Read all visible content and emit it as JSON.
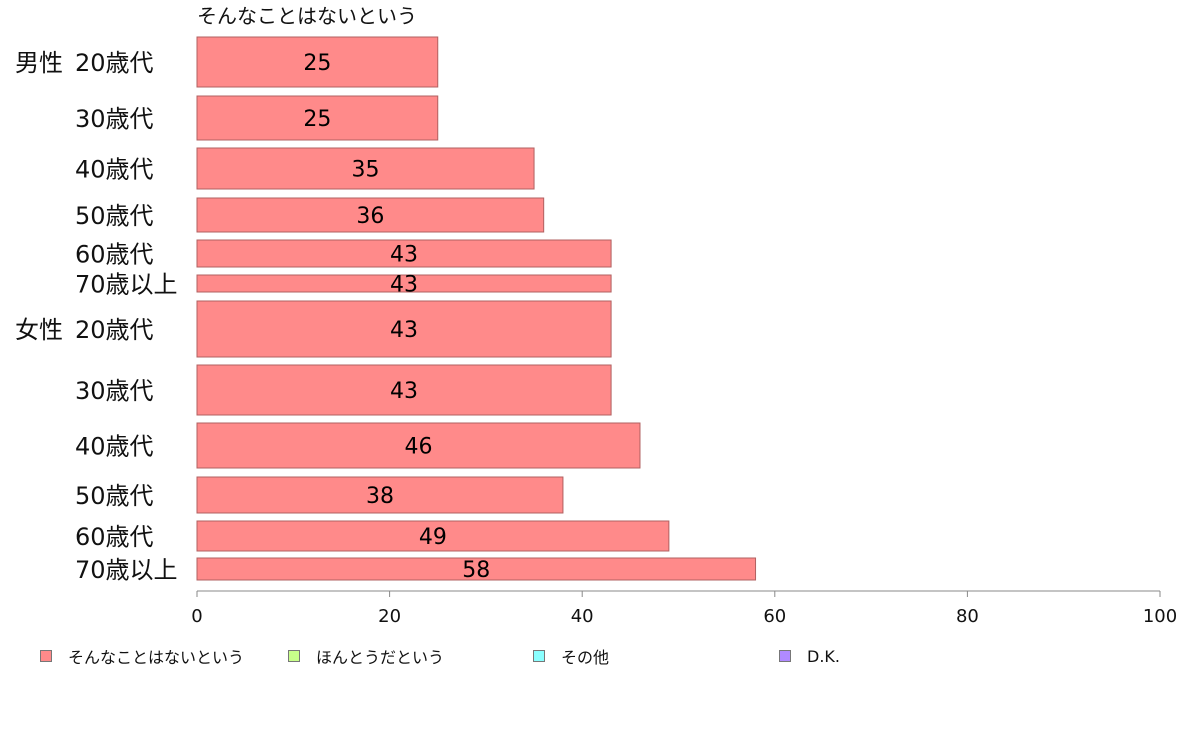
{
  "chart_data": {
    "type": "bar",
    "orientation": "horizontal",
    "series_label": "そんなことはないという",
    "groups": [
      {
        "label": "男性",
        "categories": [
          "20歳代",
          "30歳代",
          "40歳代",
          "50歳代",
          "60歳代",
          "70歳以上"
        ],
        "values": [
          25,
          25,
          35,
          36,
          43,
          43
        ]
      },
      {
        "label": "女性",
        "categories": [
          "20歳代",
          "30歳代",
          "40歳代",
          "50歳代",
          "60歳代",
          "70歳以上"
        ],
        "values": [
          43,
          43,
          46,
          38,
          49,
          58
        ]
      }
    ],
    "xlim": [
      0,
      100
    ],
    "xticks": [
      0,
      20,
      40,
      60,
      80,
      100
    ],
    "grid": false,
    "legend_position": "bottom",
    "legend": [
      {
        "label": "そんなことはないという",
        "color": "#ff8a8a"
      },
      {
        "label": "ほんとうだという",
        "color": "#c8ff8a"
      },
      {
        "label": "その他",
        "color": "#8affff"
      },
      {
        "label": "D.K.",
        "color": "#b08aff"
      }
    ],
    "bar_color": "#ff8a8a",
    "bar_border_color": "#b06060"
  }
}
